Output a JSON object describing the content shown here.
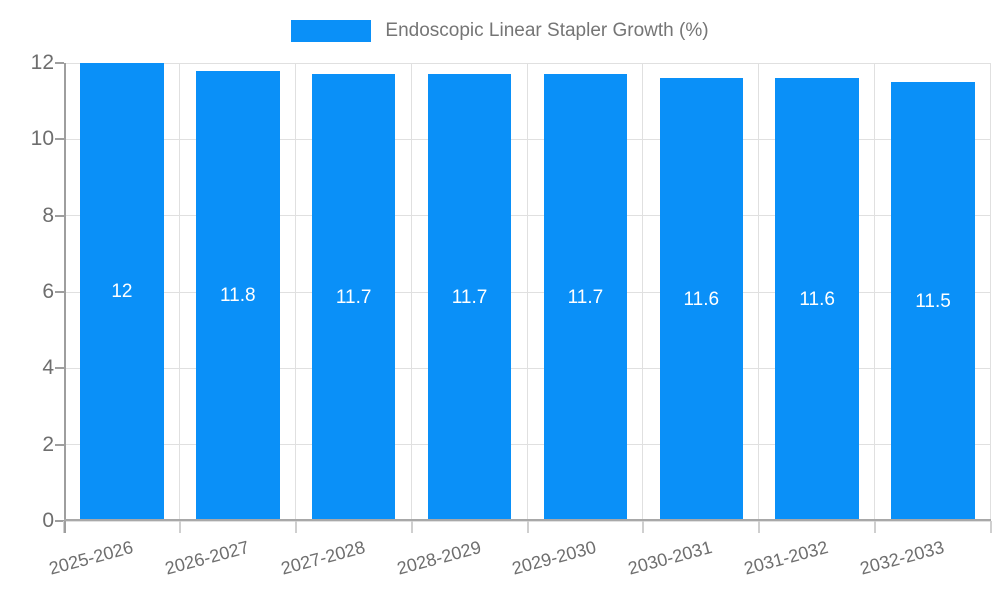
{
  "chart_data": {
    "type": "bar",
    "title": "Endoscopic Linear Stapler Growth (%)",
    "legend_entries": [
      "Endoscopic Linear Stapler Growth (%)"
    ],
    "legend_position": "top-center",
    "categories": [
      "2025-2026",
      "2026-2027",
      "2027-2028",
      "2028-2029",
      "2029-2030",
      "2030-2031",
      "2031-2032",
      "2032-2033"
    ],
    "values": [
      12,
      11.8,
      11.7,
      11.7,
      11.7,
      11.6,
      11.6,
      11.5
    ],
    "value_labels": [
      "12",
      "11.8",
      "11.7",
      "11.7",
      "11.7",
      "11.6",
      "11.6",
      "11.5"
    ],
    "xlabel": "",
    "ylabel": "",
    "ylim": [
      0,
      12
    ],
    "yticks": [
      0,
      2,
      4,
      6,
      8,
      10,
      12
    ],
    "grid": true,
    "x_label_rotation_deg": -15,
    "colors": {
      "bar": "#0a90f8",
      "grid": "#e0e0e0",
      "axis": "#9e9e9e",
      "tick_text": "#6e6e6e",
      "legend_text": "#757575",
      "value_label": "#ffffff",
      "background": "#ffffff"
    }
  }
}
